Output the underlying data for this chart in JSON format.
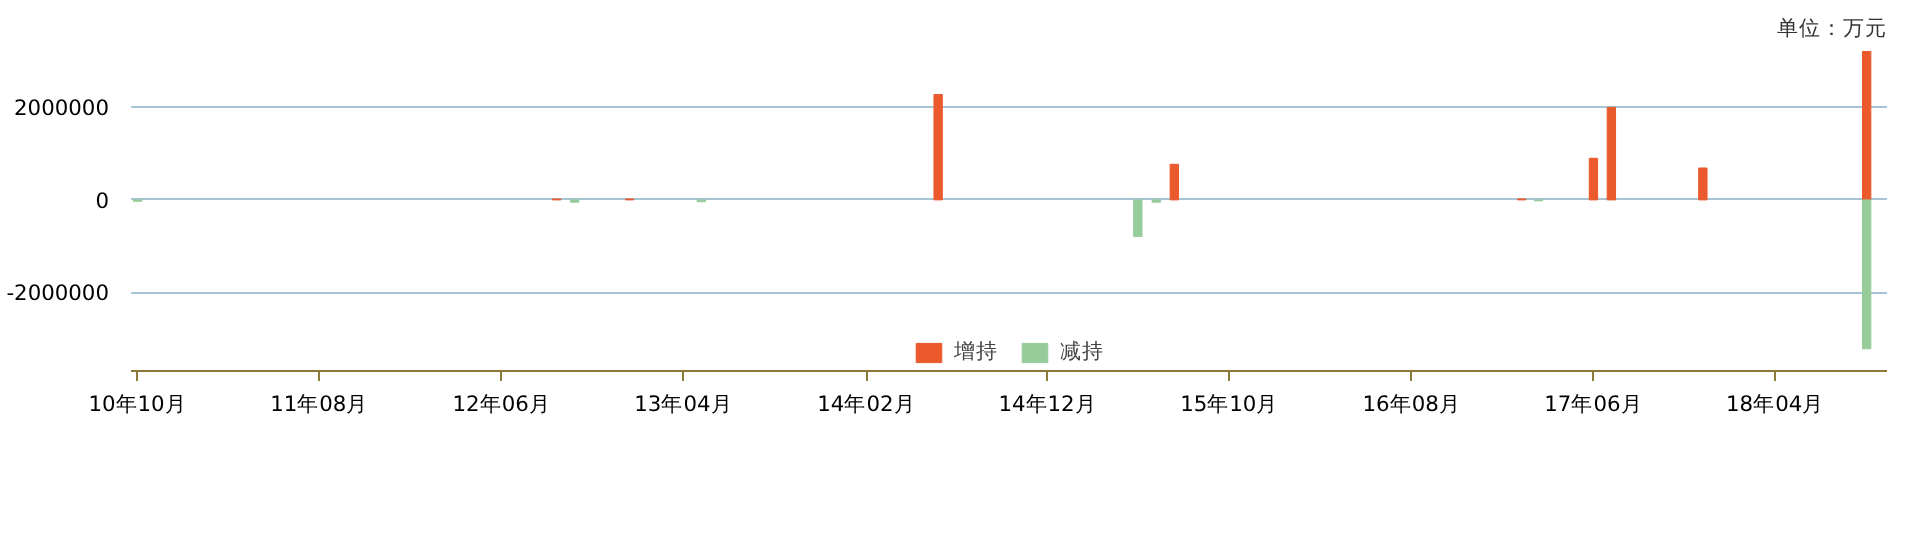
{
  "chart_data": {
    "type": "bar",
    "annotations": [
      "单位：万元"
    ],
    "series": [
      {
        "name": "增持",
        "color": "#ea5a2c",
        "x": [
          "2012-09",
          "2013-01",
          "2014-06",
          "2015-07",
          "2017-02",
          "2017-06",
          "2017-07",
          "2017-12",
          "2018-09"
        ],
        "values": [
          20000,
          20000,
          2280000,
          770000,
          20000,
          900000,
          2000000,
          690000,
          3220000
        ]
      },
      {
        "name": "减持",
        "color": "#97cc9a",
        "x": [
          "2010-10",
          "2012-10",
          "2013-05",
          "2015-05",
          "2015-06",
          "2017-03",
          "2018-09"
        ],
        "values": [
          -30000,
          -50000,
          -40000,
          -790000,
          -50000,
          -20000,
          -3220000
        ]
      }
    ],
    "xlim": [
      "2010-09-20",
      "2018-10-05"
    ],
    "xticks": [
      {
        "value": "2010-10",
        "label": "10年10月"
      },
      {
        "value": "2011-08",
        "label": "11年08月"
      },
      {
        "value": "2012-06",
        "label": "12年06月"
      },
      {
        "value": "2013-04",
        "label": "13年04月"
      },
      {
        "value": "2014-02",
        "label": "14年02月"
      },
      {
        "value": "2014-12",
        "label": "14年12月"
      },
      {
        "value": "2015-10",
        "label": "15年10月"
      },
      {
        "value": "2016-08",
        "label": "16年08月"
      },
      {
        "value": "2017-06",
        "label": "17年06月"
      },
      {
        "value": "2018-04",
        "label": "18年04月"
      }
    ],
    "ylim": [
      -3700000,
      3220000
    ],
    "yticks": [
      -2000000,
      0,
      2000000
    ],
    "grid": "y",
    "legend": "bottom"
  }
}
